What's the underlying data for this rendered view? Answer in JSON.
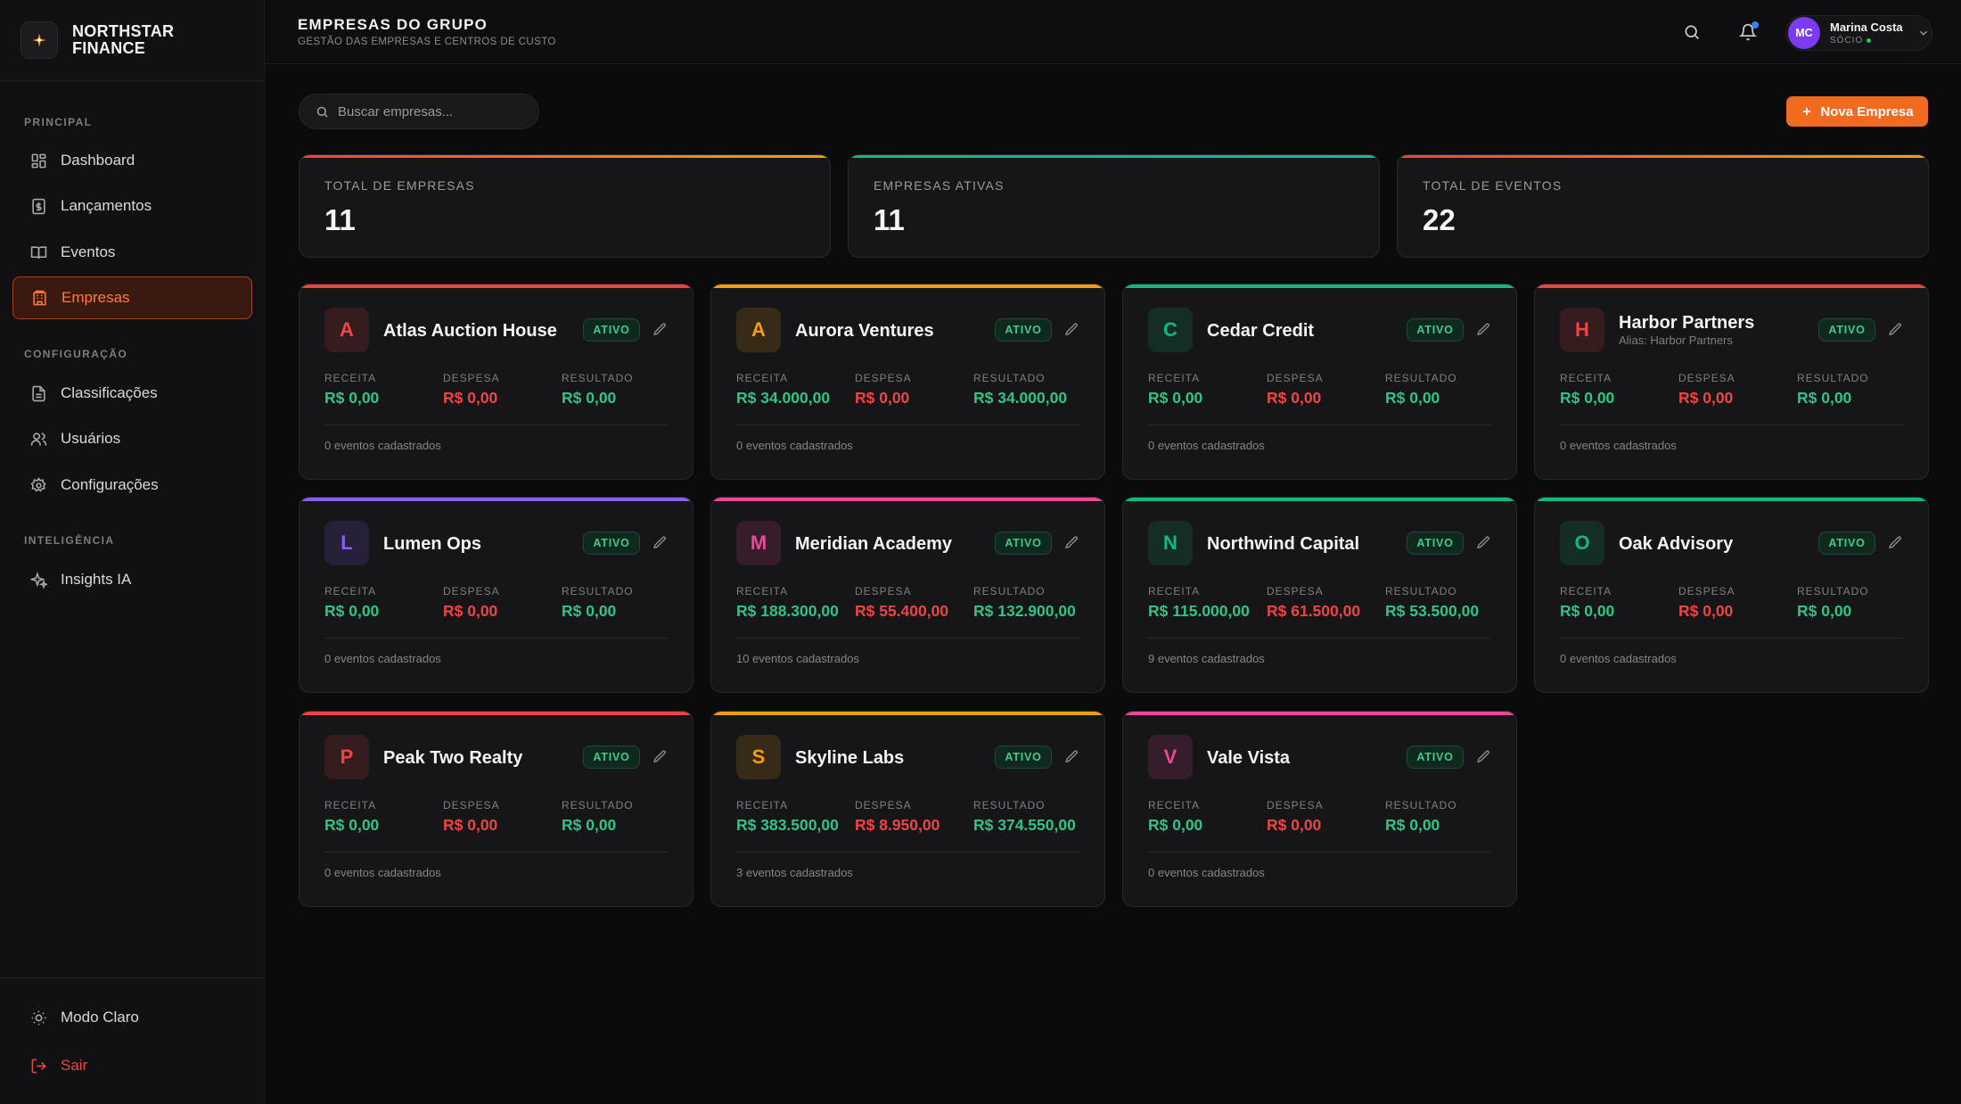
{
  "brand": {
    "name_line1": "NORTHSTAR",
    "name_line2": "FINANCE",
    "logo_icon": "spark-icon"
  },
  "sidebar": {
    "section_principal": "PRINCIPAL",
    "section_config": "CONFIGURAÇÃO",
    "section_ia": "INTELIGÊNCIA",
    "items": [
      {
        "label": "Dashboard",
        "icon": "grid-icon"
      },
      {
        "label": "Lançamentos",
        "icon": "receipt-icon"
      },
      {
        "label": "Eventos",
        "icon": "book-icon"
      },
      {
        "label": "Empresas",
        "icon": "building-icon",
        "active": true
      },
      {
        "label": "Classificações",
        "icon": "document-icon"
      },
      {
        "label": "Usuários",
        "icon": "users-icon"
      },
      {
        "label": "Configurações",
        "icon": "gear-icon"
      },
      {
        "label": "Insights IA",
        "icon": "sparkles-icon"
      }
    ],
    "theme_toggle": "Modo Claro",
    "logout": "Sair"
  },
  "header": {
    "title": "EMPRESAS DO GRUPO",
    "subtitle": "GESTÃO DAS EMPRESAS E CENTROS DE CUSTO",
    "user": {
      "initials": "MC",
      "name": "Marina Costa",
      "role": "SÓCIO"
    }
  },
  "toolbar": {
    "search_placeholder": "Buscar empresas...",
    "new_button": "Nova Empresa"
  },
  "stats": [
    {
      "label": "TOTAL DE EMPRESAS",
      "value": "11",
      "color": "#f97316"
    },
    {
      "label": "EMPRESAS ATIVAS",
      "value": "11",
      "color": "#10b981"
    },
    {
      "label": "TOTAL DE EVENTOS",
      "value": "22",
      "color": "#f97316"
    }
  ],
  "metric_labels": {
    "receita": "RECEITA",
    "despesa": "DESPESA",
    "resultado": "RESULTADO"
  },
  "status_label": "ATIVO",
  "companies": [
    {
      "letter": "A",
      "name": "Atlas Auction House",
      "alias": "",
      "color": "#ef4444",
      "receita": "R$ 0,00",
      "despesa": "R$ 0,00",
      "resultado": "R$ 0,00",
      "events": "0 eventos cadastrados"
    },
    {
      "letter": "A",
      "name": "Aurora Ventures",
      "alias": "",
      "color": "#f59e0b",
      "receita": "R$ 34.000,00",
      "despesa": "R$ 0,00",
      "resultado": "R$ 34.000,00",
      "events": "0 eventos cadastrados"
    },
    {
      "letter": "C",
      "name": "Cedar Credit",
      "alias": "",
      "color": "#10b981",
      "receita": "R$ 0,00",
      "despesa": "R$ 0,00",
      "resultado": "R$ 0,00",
      "events": "0 eventos cadastrados"
    },
    {
      "letter": "H",
      "name": "Harbor Partners",
      "alias": "Alias: Harbor Partners",
      "color": "#ef4444",
      "receita": "R$ 0,00",
      "despesa": "R$ 0,00",
      "resultado": "R$ 0,00",
      "events": "0 eventos cadastrados"
    },
    {
      "letter": "L",
      "name": "Lumen Ops",
      "alias": "",
      "color": "#8b5cf6",
      "receita": "R$ 0,00",
      "despesa": "R$ 0,00",
      "resultado": "R$ 0,00",
      "events": "0 eventos cadastrados"
    },
    {
      "letter": "M",
      "name": "Meridian Academy",
      "alias": "",
      "color": "#ec4899",
      "receita": "R$ 188.300,00",
      "despesa": "R$ 55.400,00",
      "resultado": "R$ 132.900,00",
      "events": "10 eventos cadastrados"
    },
    {
      "letter": "N",
      "name": "Northwind Capital",
      "alias": "",
      "color": "#10b981",
      "receita": "R$ 115.000,00",
      "despesa": "R$ 61.500,00",
      "resultado": "R$ 53.500,00",
      "events": "9 eventos cadastrados"
    },
    {
      "letter": "O",
      "name": "Oak Advisory",
      "alias": "",
      "color": "#10b981",
      "receita": "R$ 0,00",
      "despesa": "R$ 0,00",
      "resultado": "R$ 0,00",
      "events": "0 eventos cadastrados"
    },
    {
      "letter": "P",
      "name": "Peak Two Realty",
      "alias": "",
      "color": "#ef4444",
      "receita": "R$ 0,00",
      "despesa": "R$ 0,00",
      "resultado": "R$ 0,00",
      "events": "0 eventos cadastrados"
    },
    {
      "letter": "S",
      "name": "Skyline Labs",
      "alias": "",
      "color": "#f59e0b",
      "receita": "R$ 383.500,00",
      "despesa": "R$ 8.950,00",
      "resultado": "R$ 374.550,00",
      "events": "3 eventos cadastrados"
    },
    {
      "letter": "V",
      "name": "Vale Vista",
      "alias": "",
      "color": "#ec4899",
      "receita": "R$ 0,00",
      "despesa": "R$ 0,00",
      "resultado": "R$ 0,00",
      "events": "0 eventos cadastrados"
    }
  ]
}
